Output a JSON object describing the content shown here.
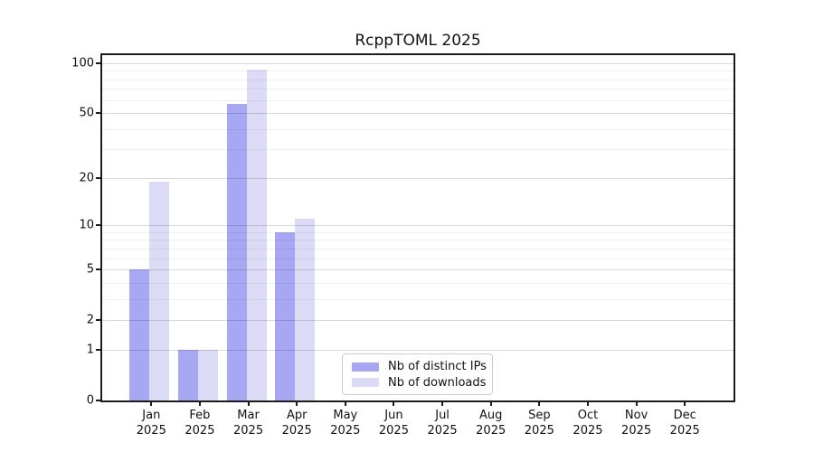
{
  "title": "RcppTOML 2025",
  "chart_data": {
    "type": "bar",
    "title": "RcppTOML 2025",
    "categories": [
      "Jan 2025",
      "Feb 2025",
      "Mar 2025",
      "Apr 2025",
      "May 2025",
      "Jun 2025",
      "Jul 2025",
      "Aug 2025",
      "Sep 2025",
      "Oct 2025",
      "Nov 2025",
      "Dec 2025"
    ],
    "series": [
      {
        "name": "Nb of distinct IPs",
        "color": "#a7a7f3",
        "values": [
          5,
          1,
          57,
          9,
          0,
          0,
          0,
          0,
          0,
          0,
          0,
          0
        ]
      },
      {
        "name": "Nb of downloads",
        "color": "#dbdbf6",
        "values": [
          19,
          1,
          92,
          11,
          0,
          0,
          0,
          0,
          0,
          0,
          0,
          0
        ]
      }
    ],
    "xlabel": "",
    "ylabel": "",
    "yscale": "log1p",
    "ylim": [
      0,
      112
    ],
    "y_major_ticks": [
      0,
      1,
      2,
      5,
      10,
      20,
      50,
      100
    ],
    "y_minor_gridlines": [
      3,
      4,
      6,
      7,
      8,
      9,
      30,
      40,
      60,
      70,
      80,
      90
    ],
    "grid": "horizontal, drawn above bars",
    "legend_position": "lower center-left inside plot"
  },
  "colors": {
    "background": "#ffffff",
    "spine": "#1c1c1c",
    "bar_distinct_ips": "#a7a7f3",
    "bar_downloads": "#dbdbf6",
    "grid_major": "#d9d9d9",
    "grid_minor": "#efefef",
    "legend_border": "#cccccc",
    "text": "#111111"
  }
}
